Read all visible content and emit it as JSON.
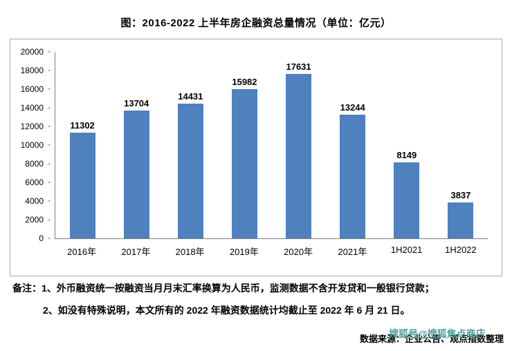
{
  "title": "图：2016-2022 上半年房企融资总量情况（单位：亿元）",
  "chart_data": {
    "type": "bar",
    "categories": [
      "2016年",
      "2017年",
      "2018年",
      "2019年",
      "2020年",
      "2021年",
      "1H2021",
      "1H2022"
    ],
    "values": [
      11302,
      13704,
      14431,
      15982,
      17631,
      13244,
      8149,
      3837
    ],
    "title": "图：2016-2022 上半年房企融资总量情况（单位：亿元）",
    "xlabel": "",
    "ylabel": "",
    "ylim": [
      0,
      20000
    ],
    "ytick_step": 2000,
    "bar_color": "#4E81BD",
    "grid": false,
    "legend": "none"
  },
  "notes": {
    "line1": "备注：1、外币融资统一按融资当月月末汇率换算为人民币，监测数据不含开发贷和一般银行贷款；",
    "line2": "2、如没有特殊说明，本文所有的 2022 年融资数据统计均截止至 2022 年 6 月 21 日。"
  },
  "source": {
    "text": "数据来源：企业公告、观点指数整理",
    "watermark": "搜狐号@搜狐焦点商店"
  }
}
